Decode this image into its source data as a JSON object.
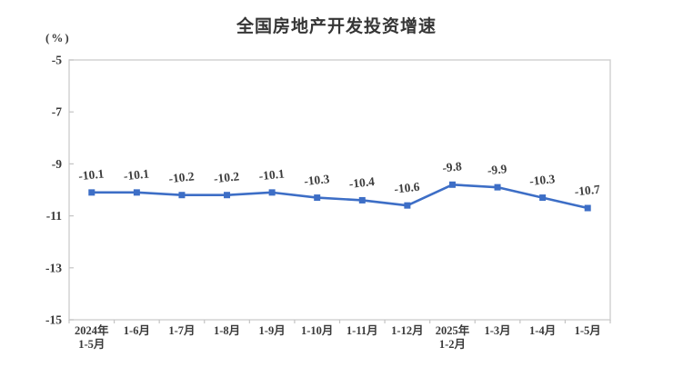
{
  "chart_data": {
    "type": "line",
    "title": "全国房地产开发投资增速",
    "unit_label": "(%)",
    "categories": [
      "2024年\n1-5月",
      "1-6月",
      "1-7月",
      "1-8月",
      "1-9月",
      "1-10月",
      "1-11月",
      "1-12月",
      "2025年\n1-2月",
      "1-3月",
      "1-4月",
      "1-5月"
    ],
    "values": [
      -10.1,
      -10.1,
      -10.2,
      -10.2,
      -10.1,
      -10.3,
      -10.4,
      -10.6,
      -9.8,
      -9.9,
      -10.3,
      -10.7
    ],
    "data_labels": [
      "-10.1",
      "-10.1",
      "-10.2",
      "-10.2",
      "-10.1",
      "-10.3",
      "-10.4",
      "-10.6",
      "-9.8",
      "-9.9",
      "-10.3",
      "-10.7"
    ],
    "ylim": [
      -15,
      -5
    ],
    "yticks": [
      "-5",
      "-7",
      "-9",
      "-11",
      "-13",
      "-15"
    ],
    "xlabel": "",
    "ylabel": "(%)",
    "grid": false,
    "legend": "none",
    "marker": "square",
    "colors": {
      "line": "#3d6ec6",
      "marker": "#3d6ec6",
      "plot_border": "#cfcfcf",
      "tick": "#c4c4c4",
      "axis_text": "#3a3a3a",
      "data_label_text": "#3d3d3d",
      "title_text": "#363636",
      "background": "#ffffff"
    }
  }
}
